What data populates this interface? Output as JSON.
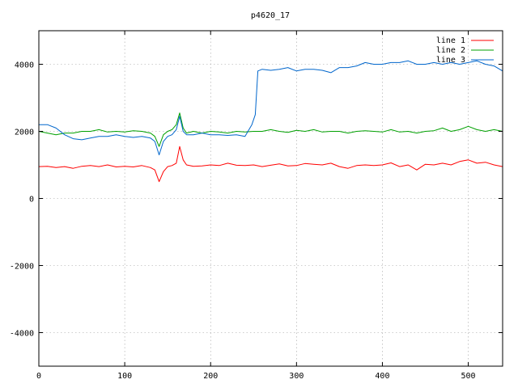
{
  "chart_data": {
    "type": "line",
    "title": "p4620_17",
    "xlabel": "",
    "ylabel": "",
    "xlim": [
      0,
      540
    ],
    "ylim": [
      -5000,
      5000
    ],
    "x_ticks": [
      0,
      100,
      200,
      300,
      400,
      500
    ],
    "y_ticks": [
      -4000,
      -2000,
      0,
      2000,
      4000
    ],
    "grid": true,
    "legend_position": "top-right",
    "series": [
      {
        "name": "line 1",
        "color": "#ff0000",
        "points": [
          [
            0,
            950
          ],
          [
            10,
            960
          ],
          [
            20,
            920
          ],
          [
            30,
            950
          ],
          [
            40,
            900
          ],
          [
            50,
            960
          ],
          [
            60,
            980
          ],
          [
            70,
            950
          ],
          [
            80,
            1000
          ],
          [
            90,
            940
          ],
          [
            100,
            960
          ],
          [
            110,
            940
          ],
          [
            120,
            980
          ],
          [
            130,
            920
          ],
          [
            135,
            850
          ],
          [
            140,
            500
          ],
          [
            145,
            800
          ],
          [
            150,
            950
          ],
          [
            155,
            980
          ],
          [
            160,
            1050
          ],
          [
            164,
            1550
          ],
          [
            168,
            1150
          ],
          [
            172,
            1000
          ],
          [
            180,
            960
          ],
          [
            190,
            970
          ],
          [
            200,
            1000
          ],
          [
            210,
            980
          ],
          [
            220,
            1050
          ],
          [
            230,
            990
          ],
          [
            240,
            980
          ],
          [
            250,
            1000
          ],
          [
            260,
            950
          ],
          [
            270,
            990
          ],
          [
            280,
            1030
          ],
          [
            290,
            970
          ],
          [
            300,
            980
          ],
          [
            310,
            1040
          ],
          [
            320,
            1020
          ],
          [
            330,
            1000
          ],
          [
            340,
            1050
          ],
          [
            350,
            950
          ],
          [
            360,
            900
          ],
          [
            370,
            980
          ],
          [
            380,
            1000
          ],
          [
            390,
            980
          ],
          [
            400,
            1000
          ],
          [
            410,
            1060
          ],
          [
            420,
            950
          ],
          [
            430,
            1000
          ],
          [
            440,
            850
          ],
          [
            450,
            1020
          ],
          [
            460,
            1000
          ],
          [
            470,
            1050
          ],
          [
            480,
            1000
          ],
          [
            490,
            1100
          ],
          [
            500,
            1150
          ],
          [
            510,
            1050
          ],
          [
            520,
            1080
          ],
          [
            530,
            1000
          ],
          [
            540,
            950
          ]
        ]
      },
      {
        "name": "line 2",
        "color": "#00a000",
        "points": [
          [
            0,
            2000
          ],
          [
            10,
            1950
          ],
          [
            20,
            1900
          ],
          [
            30,
            1950
          ],
          [
            40,
            1950
          ],
          [
            50,
            2000
          ],
          [
            60,
            2000
          ],
          [
            70,
            2050
          ],
          [
            80,
            1980
          ],
          [
            90,
            2000
          ],
          [
            100,
            1980
          ],
          [
            110,
            2020
          ],
          [
            120,
            2000
          ],
          [
            130,
            1950
          ],
          [
            135,
            1850
          ],
          [
            140,
            1550
          ],
          [
            145,
            1900
          ],
          [
            150,
            2000
          ],
          [
            155,
            2050
          ],
          [
            160,
            2200
          ],
          [
            164,
            2550
          ],
          [
            168,
            2100
          ],
          [
            172,
            1950
          ],
          [
            180,
            2000
          ],
          [
            190,
            1950
          ],
          [
            200,
            2000
          ],
          [
            210,
            1980
          ],
          [
            220,
            1950
          ],
          [
            230,
            2000
          ],
          [
            240,
            1980
          ],
          [
            250,
            2000
          ],
          [
            260,
            2000
          ],
          [
            270,
            2050
          ],
          [
            280,
            2000
          ],
          [
            290,
            1970
          ],
          [
            300,
            2030
          ],
          [
            310,
            2000
          ],
          [
            320,
            2050
          ],
          [
            330,
            1980
          ],
          [
            340,
            2000
          ],
          [
            350,
            2000
          ],
          [
            360,
            1950
          ],
          [
            370,
            2000
          ],
          [
            380,
            2020
          ],
          [
            390,
            2000
          ],
          [
            400,
            1980
          ],
          [
            410,
            2050
          ],
          [
            420,
            1980
          ],
          [
            430,
            2000
          ],
          [
            440,
            1950
          ],
          [
            450,
            2000
          ],
          [
            460,
            2020
          ],
          [
            470,
            2100
          ],
          [
            480,
            2000
          ],
          [
            490,
            2050
          ],
          [
            500,
            2150
          ],
          [
            510,
            2050
          ],
          [
            520,
            2000
          ],
          [
            530,
            2050
          ],
          [
            540,
            2000
          ]
        ]
      },
      {
        "name": "line 3",
        "color": "#0066cc",
        "points": [
          [
            0,
            2200
          ],
          [
            10,
            2200
          ],
          [
            20,
            2100
          ],
          [
            30,
            1900
          ],
          [
            40,
            1780
          ],
          [
            50,
            1750
          ],
          [
            60,
            1800
          ],
          [
            70,
            1850
          ],
          [
            80,
            1850
          ],
          [
            90,
            1900
          ],
          [
            100,
            1850
          ],
          [
            110,
            1820
          ],
          [
            120,
            1850
          ],
          [
            130,
            1800
          ],
          [
            135,
            1700
          ],
          [
            140,
            1300
          ],
          [
            145,
            1700
          ],
          [
            150,
            1850
          ],
          [
            155,
            1900
          ],
          [
            160,
            2050
          ],
          [
            164,
            2450
          ],
          [
            168,
            2000
          ],
          [
            172,
            1900
          ],
          [
            180,
            1900
          ],
          [
            190,
            1950
          ],
          [
            200,
            1900
          ],
          [
            210,
            1900
          ],
          [
            220,
            1880
          ],
          [
            230,
            1900
          ],
          [
            240,
            1850
          ],
          [
            248,
            2200
          ],
          [
            252,
            2500
          ],
          [
            255,
            3800
          ],
          [
            260,
            3850
          ],
          [
            270,
            3820
          ],
          [
            280,
            3850
          ],
          [
            290,
            3900
          ],
          [
            300,
            3800
          ],
          [
            310,
            3850
          ],
          [
            320,
            3850
          ],
          [
            330,
            3820
          ],
          [
            340,
            3750
          ],
          [
            350,
            3900
          ],
          [
            360,
            3900
          ],
          [
            370,
            3950
          ],
          [
            380,
            4050
          ],
          [
            390,
            4000
          ],
          [
            400,
            4000
          ],
          [
            410,
            4050
          ],
          [
            420,
            4050
          ],
          [
            430,
            4100
          ],
          [
            440,
            4000
          ],
          [
            450,
            4000
          ],
          [
            460,
            4050
          ],
          [
            470,
            4000
          ],
          [
            480,
            4050
          ],
          [
            490,
            4000
          ],
          [
            500,
            4050
          ],
          [
            510,
            4100
          ],
          [
            520,
            4000
          ],
          [
            530,
            3950
          ],
          [
            540,
            3800
          ]
        ]
      }
    ]
  }
}
